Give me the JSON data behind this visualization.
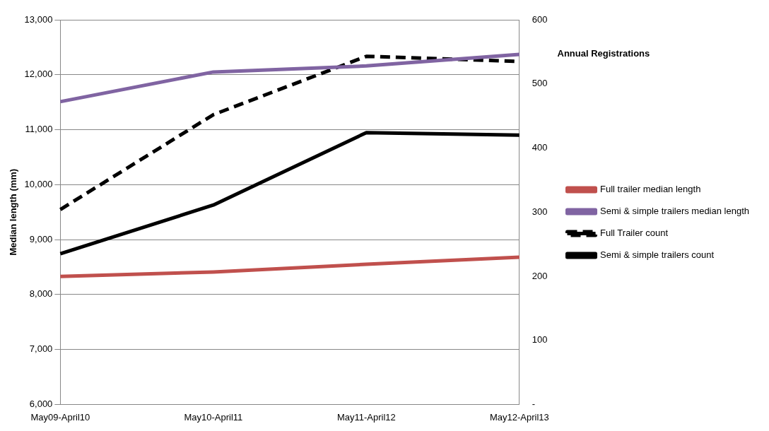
{
  "chart_data": {
    "type": "line",
    "ylabel": "Median length (mm)",
    "y2label": "Annual Registrations",
    "categories": [
      "May09-April10",
      "May10-April11",
      "May11-April12",
      "May12-April13"
    ],
    "series": [
      {
        "name": "Full trailer median length",
        "color": "#c0504d",
        "values": [
          8330,
          8410,
          8550,
          8680
        ]
      },
      {
        "name": "Semi & simple trailers median length",
        "color": "#8064a2",
        "values": [
          11510,
          12050,
          12160,
          12370
        ]
      },
      {
        "name": "Full Trailer count",
        "color": "#000000",
        "axis": "y2",
        "line_style": "dashed",
        "values": [
          304,
          452,
          543,
          535
        ]
      },
      {
        "name": "Semi & simple trailers count",
        "color": "#000000",
        "axis": "y2",
        "values": [
          235,
          311,
          424,
          420
        ]
      }
    ],
    "ylim": [
      6000,
      13000
    ],
    "yticks": [
      {
        "value": 6000,
        "label": "6,000"
      },
      {
        "value": 7000,
        "label": "7,000"
      },
      {
        "value": 8000,
        "label": "8,000"
      },
      {
        "value": 9000,
        "label": "9,000"
      },
      {
        "value": 10000,
        "label": "10,000"
      },
      {
        "value": 11000,
        "label": "11,000"
      },
      {
        "value": 12000,
        "label": "12,000"
      },
      {
        "value": 13000,
        "label": "13,000"
      }
    ],
    "y2lim": [
      0,
      600
    ],
    "y2ticks": [
      {
        "value": 0,
        "label": "-"
      },
      100,
      200,
      300,
      400,
      500,
      600
    ],
    "grid": "y",
    "legend": "right",
    "marker": "none"
  }
}
